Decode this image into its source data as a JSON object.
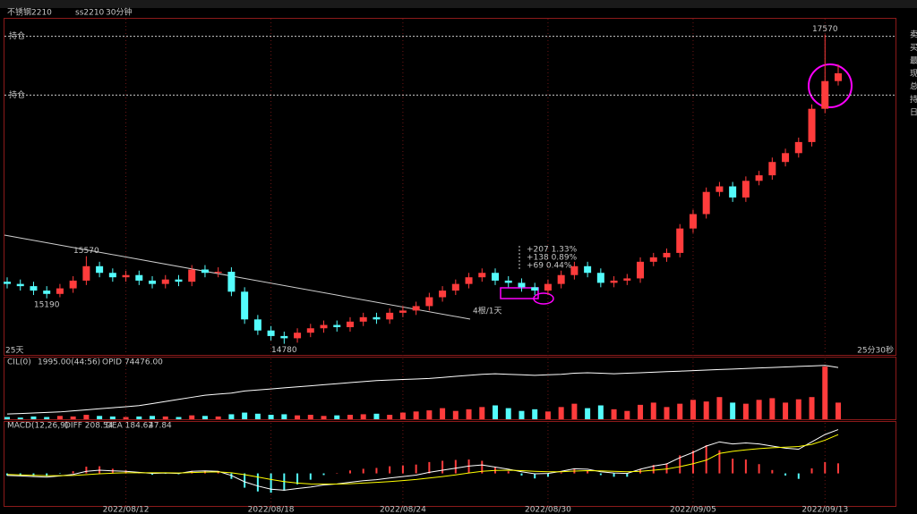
{
  "chart_data": [
    {
      "type": "candlestick",
      "title": "不锈钢2210",
      "subtitle": "ss2210",
      "period": "30分钟",
      "categories": [
        null,
        null,
        null,
        null,
        null,
        null,
        null,
        null,
        null,
        "2022/08/12",
        null,
        null,
        null,
        null,
        null,
        null,
        null,
        null,
        null,
        null,
        "2022/08/18",
        null,
        null,
        null,
        null,
        null,
        null,
        null,
        null,
        null,
        "2022/08/24",
        null,
        null,
        null,
        null,
        null,
        null,
        null,
        null,
        null,
        null,
        "2022/08/30",
        null,
        null,
        null,
        null,
        null,
        null,
        null,
        null,
        null,
        null,
        "2022/09/05",
        null,
        null,
        null,
        null,
        null,
        null,
        null,
        null,
        null,
        "2022/09/13",
        null
      ],
      "open": [
        15340,
        15320,
        15300,
        15260,
        15230,
        15280,
        15350,
        15480,
        15420,
        15380,
        15400,
        15350,
        15320,
        15360,
        15340,
        15450,
        15420,
        15430,
        15250,
        15000,
        14900,
        14850,
        14830,
        14880,
        14920,
        14950,
        14930,
        14980,
        15020,
        15000,
        15060,
        15080,
        15120,
        15200,
        15260,
        15320,
        15380,
        15420,
        15350,
        15330,
        15290,
        15260,
        15320,
        15400,
        15480,
        15420,
        15330,
        15350,
        15370,
        15520,
        15560,
        15600,
        15820,
        15950,
        16150,
        16200,
        16100,
        16250,
        16300,
        16420,
        16500,
        16600,
        16900,
        17150
      ],
      "high": [
        15380,
        15360,
        15340,
        15300,
        15320,
        15390,
        15570,
        15520,
        15460,
        15440,
        15440,
        15390,
        15400,
        15400,
        15490,
        15490,
        15470,
        15470,
        15290,
        15040,
        14940,
        14890,
        14920,
        14960,
        14990,
        14990,
        15020,
        15060,
        15060,
        15100,
        15120,
        15160,
        15240,
        15300,
        15360,
        15420,
        15460,
        15460,
        15390,
        15370,
        15330,
        15360,
        15440,
        15520,
        15520,
        15460,
        15390,
        15410,
        15560,
        15600,
        15640,
        15860,
        15990,
        16190,
        16240,
        16240,
        16290,
        16340,
        16460,
        16540,
        16640,
        16940,
        17570,
        17300
      ],
      "low": [
        15280,
        15260,
        15220,
        15190,
        15200,
        15240,
        15310,
        15380,
        15340,
        15340,
        15310,
        15280,
        15280,
        15300,
        15300,
        15380,
        15380,
        15210,
        14960,
        14860,
        14810,
        14780,
        14790,
        14840,
        14880,
        14890,
        14890,
        14940,
        14960,
        14960,
        15020,
        15040,
        15080,
        15160,
        15220,
        15280,
        15340,
        15310,
        15290,
        15250,
        15220,
        15220,
        15280,
        15360,
        15380,
        15290,
        15290,
        15310,
        15330,
        15480,
        15520,
        15560,
        15780,
        15910,
        16110,
        16060,
        16060,
        16210,
        16260,
        16380,
        16460,
        16560,
        16860,
        17110
      ],
      "close": [
        15320,
        15300,
        15260,
        15230,
        15280,
        15350,
        15480,
        15420,
        15380,
        15400,
        15350,
        15320,
        15360,
        15340,
        15450,
        15420,
        15430,
        15250,
        15000,
        14900,
        14850,
        14830,
        14880,
        14920,
        14950,
        14930,
        14980,
        15020,
        15000,
        15060,
        15080,
        15120,
        15200,
        15260,
        15320,
        15380,
        15420,
        15350,
        15330,
        15290,
        15260,
        15320,
        15400,
        15480,
        15420,
        15330,
        15350,
        15370,
        15520,
        15560,
        15600,
        15820,
        15950,
        16150,
        16200,
        16100,
        16250,
        16300,
        16420,
        16500,
        16600,
        16900,
        17150,
        17220
      ],
      "ylim": [
        14680,
        17720
      ],
      "up_color": "#ff3c3c",
      "down_color": "#54fcfc",
      "price_labels": [
        15570,
        15190,
        14780,
        17570
      ],
      "levels": [
        {
          "value": 17554,
          "label": "持仓"
        },
        {
          "value": 17023,
          "label": "持仓"
        }
      ],
      "left_note": "25天",
      "right_note": "25分30秒",
      "measure": [
        "+207 1.33%",
        "+138 0.89%",
        "+69 0.44%"
      ],
      "measure_note": "4根/1天",
      "side_labels": [
        "卖",
        "买",
        "最",
        "现",
        "总",
        "持",
        "日"
      ]
    },
    {
      "type": "volume",
      "legend": [
        "CIL(0)",
        "1995.00(44:56)",
        "OPID 74476.00"
      ],
      "values": [
        4,
        3,
        5,
        4,
        6,
        5,
        8,
        6,
        5,
        4,
        5,
        6,
        5,
        4,
        7,
        6,
        5,
        9,
        12,
        10,
        8,
        9,
        7,
        8,
        6,
        7,
        8,
        9,
        10,
        8,
        12,
        14,
        16,
        20,
        15,
        18,
        22,
        25,
        20,
        15,
        18,
        14,
        22,
        28,
        20,
        25,
        18,
        15,
        26,
        30,
        22,
        28,
        35,
        32,
        40,
        30,
        28,
        35,
        38,
        30,
        36,
        40,
        95,
        30
      ],
      "vlim": [
        0,
        100
      ],
      "oi": [
        30000,
        30500,
        31000,
        31500,
        32000,
        33000,
        34000,
        35000,
        36000,
        37000,
        38000,
        40000,
        42000,
        44000,
        46000,
        48000,
        49000,
        50000,
        52000,
        53000,
        54000,
        55000,
        56000,
        57000,
        58000,
        59000,
        60000,
        61000,
        62000,
        62500,
        63000,
        63500,
        64000,
        65000,
        66000,
        67000,
        68000,
        68500,
        68000,
        67500,
        67000,
        67500,
        68000,
        69000,
        69500,
        69000,
        68500,
        69000,
        69500,
        70000,
        70500,
        71000,
        71500,
        72000,
        72500,
        73000,
        73500,
        74000,
        74500,
        75000,
        75500,
        76000,
        76500,
        74476
      ],
      "olim": [
        25000,
        78000
      ],
      "oi_color": "#ffffff"
    },
    {
      "type": "macd",
      "legend": [
        "MACD(12,26,9)",
        "DIFF 208.54",
        "DEA 184.62",
        "47.84"
      ],
      "diff": [
        -10,
        -12,
        -15,
        -18,
        -12,
        -5,
        10,
        15,
        12,
        10,
        5,
        0,
        2,
        0,
        10,
        12,
        10,
        -10,
        -40,
        -60,
        -75,
        -80,
        -72,
        -65,
        -55,
        -50,
        -42,
        -35,
        -30,
        -22,
        -15,
        -8,
        5,
        15,
        25,
        35,
        40,
        30,
        20,
        8,
        -2,
        0,
        10,
        22,
        20,
        8,
        2,
        0,
        20,
        35,
        45,
        75,
        100,
        130,
        150,
        140,
        145,
        140,
        130,
        120,
        115,
        150,
        185,
        208.54
      ],
      "dea": [
        -5,
        -7,
        -9,
        -11,
        -11,
        -10,
        -6,
        -2,
        1,
        3,
        3,
        3,
        3,
        2,
        4,
        6,
        7,
        3,
        -6,
        -17,
        -29,
        -39,
        -46,
        -50,
        -51,
        -51,
        -49,
        -46,
        -43,
        -39,
        -34,
        -29,
        -22,
        -15,
        -7,
        2,
        10,
        14,
        15,
        13,
        10,
        8,
        8,
        11,
        13,
        12,
        10,
        8,
        10,
        15,
        21,
        32,
        46,
        63,
        95,
        105,
        112,
        118,
        122,
        125,
        128,
        138,
        158,
        184.62
      ],
      "hist": [
        -10,
        -10,
        -12,
        -14,
        -2,
        10,
        32,
        34,
        22,
        14,
        4,
        -6,
        -2,
        -4,
        12,
        12,
        6,
        -26,
        -68,
        -86,
        -92,
        -82,
        -52,
        -30,
        -8,
        2,
        14,
        22,
        26,
        34,
        38,
        42,
        54,
        60,
        64,
        66,
        60,
        32,
        10,
        -10,
        -24,
        -16,
        4,
        22,
        14,
        -8,
        -16,
        -16,
        20,
        40,
        48,
        86,
        108,
        134,
        110,
        70,
        66,
        44,
        16,
        -10,
        -26,
        24,
        54,
        47.84
      ],
      "ylim": [
        -155,
        245
      ],
      "diff_color": "#ffffff",
      "dea_color": "#ffff00",
      "up_color": "#ff3c3c",
      "down_color": "#54fcfc"
    }
  ]
}
